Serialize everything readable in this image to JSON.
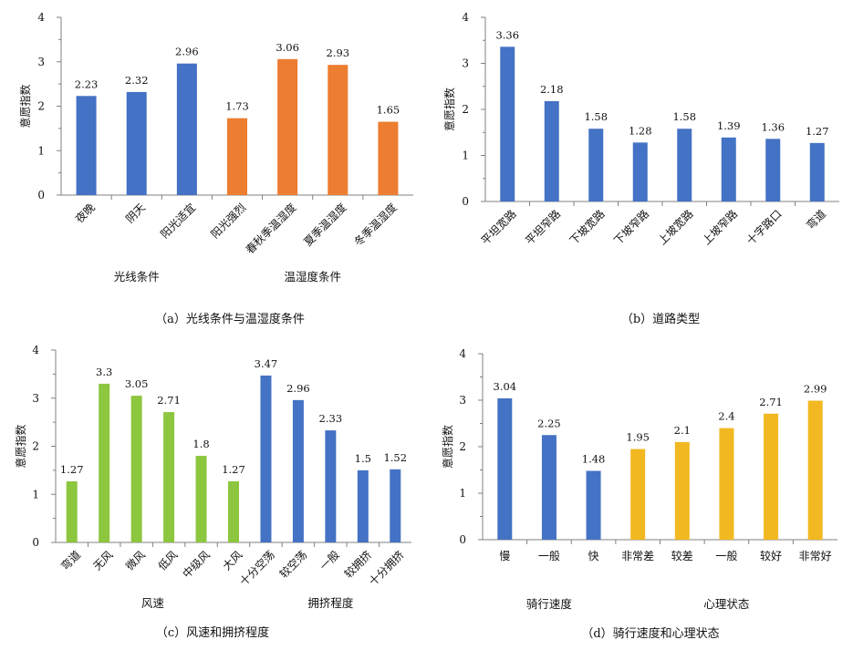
{
  "colors": {
    "blue": "#4472C4",
    "orange": "#ED7D31",
    "green": "#8DC63F",
    "yellow": "#F2B821",
    "axis": "#808080"
  },
  "chart_data": [
    {
      "type": "bar",
      "caption": "（a）光线条件与温湿度条件",
      "ylabel": "意愿指数",
      "ylim": [
        0,
        4
      ],
      "yticks": [
        "0",
        "1",
        "2",
        "3",
        "4"
      ],
      "categories": [
        "夜晚",
        "阴天",
        "阳光适宜",
        "阳光强烈",
        "春秋季温湿度",
        "夏季温湿度",
        "冬季温湿度"
      ],
      "values": [
        2.23,
        2.32,
        2.96,
        1.73,
        3.06,
        2.93,
        1.65
      ],
      "value_labels": [
        "2.23",
        "2.32",
        "2.96",
        "1.73",
        "3.06",
        "2.93",
        "1.65"
      ],
      "bar_colors": [
        "blue",
        "blue",
        "blue",
        "orange",
        "orange",
        "orange",
        "orange"
      ],
      "groups": [
        {
          "label": "光线条件",
          "from": 0,
          "to": 2
        },
        {
          "label": "温湿度条件",
          "from": 3,
          "to": 6
        }
      ],
      "grid": false,
      "legend": "none"
    },
    {
      "type": "bar",
      "caption": "（b）道路类型",
      "ylabel": "意愿指数",
      "ylim": [
        0,
        4
      ],
      "yticks": [
        "0",
        "1",
        "2",
        "3",
        "4"
      ],
      "categories": [
        "平坦宽路",
        "平坦窄路",
        "下坡宽路",
        "下坡窄路",
        "上坡宽路",
        "上坡窄路",
        "十字路口",
        "弯道"
      ],
      "values": [
        3.36,
        2.18,
        1.58,
        1.28,
        1.58,
        1.39,
        1.36,
        1.27
      ],
      "value_labels": [
        "3.36",
        "2.18",
        "1.58",
        "1.28",
        "1.58",
        "1.39",
        "1.36",
        "1.27"
      ],
      "bar_colors": [
        "blue",
        "blue",
        "blue",
        "blue",
        "blue",
        "blue",
        "blue",
        "blue"
      ],
      "groups": [],
      "grid": false,
      "legend": "none"
    },
    {
      "type": "bar",
      "caption": "（c）风速和拥挤程度",
      "ylabel": "意愿指数",
      "ylim": [
        0,
        4
      ],
      "yticks": [
        "0",
        "1",
        "2",
        "3",
        "4"
      ],
      "categories": [
        "弯道",
        "无风",
        "微风",
        "低风",
        "中级风",
        "大风",
        "十分空荡",
        "较空荡",
        "一般",
        "较拥挤",
        "十分拥挤"
      ],
      "values": [
        1.27,
        3.3,
        3.05,
        2.71,
        1.8,
        1.27,
        3.47,
        2.96,
        2.33,
        1.5,
        1.52
      ],
      "value_labels": [
        "1.27",
        "3.3",
        "3.05",
        "2.71",
        "1.8",
        "1.27",
        "3.47",
        "2.96",
        "2.33",
        "1.5",
        "1.52"
      ],
      "bar_colors": [
        "green",
        "green",
        "green",
        "green",
        "green",
        "green",
        "blue",
        "blue",
        "blue",
        "blue",
        "blue"
      ],
      "groups": [
        {
          "label": "风速",
          "from": 0,
          "to": 5
        },
        {
          "label": "拥挤程度",
          "from": 6,
          "to": 10
        }
      ],
      "grid": false,
      "legend": "none"
    },
    {
      "type": "bar",
      "caption": "（d）骑行速度和心理状态",
      "ylabel": "意愿指数",
      "ylim": [
        0,
        4
      ],
      "yticks": [
        "0",
        "1",
        "2",
        "3",
        "4"
      ],
      "categories": [
        "慢",
        "一般",
        "快",
        "非常差",
        "较差",
        "一般",
        "较好",
        "非常好"
      ],
      "values": [
        3.04,
        2.25,
        1.48,
        1.95,
        2.1,
        2.4,
        2.71,
        2.99
      ],
      "value_labels": [
        "3.04",
        "2.25",
        "1.48",
        "1.95",
        "2.1",
        "2.4",
        "2.71",
        "2.99"
      ],
      "bar_colors": [
        "blue",
        "blue",
        "blue",
        "yellow",
        "yellow",
        "yellow",
        "yellow",
        "yellow"
      ],
      "groups": [
        {
          "label": "骑行速度",
          "from": 0,
          "to": 2
        },
        {
          "label": "心理状态",
          "from": 3,
          "to": 7
        }
      ],
      "grid": false,
      "legend": "none"
    }
  ]
}
